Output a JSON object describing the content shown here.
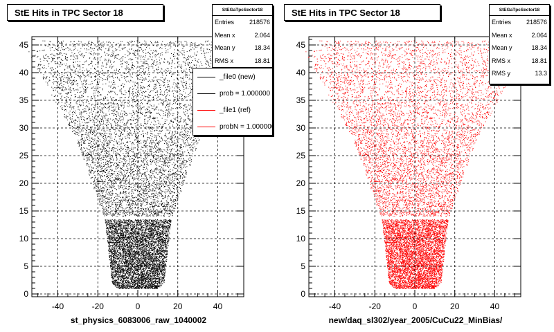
{
  "chart_data": [
    {
      "type": "scatter",
      "title": "StE Hits in TPC Sector 18",
      "xlabel": "st_physics_6083006_raw_1040002",
      "ylabel": "",
      "xlim": [
        -53,
        53
      ],
      "ylim": [
        -0.5,
        46.5
      ],
      "xticks": [
        -40,
        -20,
        0,
        20,
        40
      ],
      "yticks": [
        0,
        5,
        10,
        15,
        20,
        25,
        30,
        35,
        40,
        45
      ],
      "grid": true,
      "color": "#000000",
      "stats": {
        "name": "StEGaTpcSector18",
        "rows": [
          {
            "label": "Entries",
            "value": "218576"
          },
          {
            "label": "Mean x",
            "value": "2.064"
          },
          {
            "label": "Mean y",
            "value": "18.34"
          },
          {
            "label": "RMS x",
            "value": "18.81"
          }
        ]
      },
      "legend": [
        {
          "label": "_file0 (new)",
          "color": "#000000"
        },
        {
          "label": "prob = 1.000000",
          "color": "#000000"
        },
        {
          "label": "_file1 (ref)",
          "color": "#ff0000"
        },
        {
          "label": "probN = 1.000000",
          "color": "#ff0000"
        }
      ]
    },
    {
      "type": "scatter",
      "title": "StE Hits in TPC Sector 18",
      "xlabel": "new/daq_sl302/year_2005/CuCu22_MinBias/",
      "ylabel": "",
      "xlim": [
        -53,
        53
      ],
      "ylim": [
        -0.5,
        46.5
      ],
      "xticks": [
        -40,
        -20,
        0,
        20,
        40
      ],
      "yticks": [
        0,
        5,
        10,
        15,
        20,
        25,
        30,
        35,
        40,
        45
      ],
      "grid": true,
      "color": "#ff0000",
      "stats": {
        "name": "StEGaTpcSector18",
        "rows": [
          {
            "label": "Entries",
            "value": "218576"
          },
          {
            "label": "Mean x",
            "value": "2.064"
          },
          {
            "label": "Mean y",
            "value": "18.34"
          },
          {
            "label": "RMS x",
            "value": "18.81"
          },
          {
            "label": "RMS y",
            "value": "13.3"
          }
        ]
      }
    }
  ]
}
